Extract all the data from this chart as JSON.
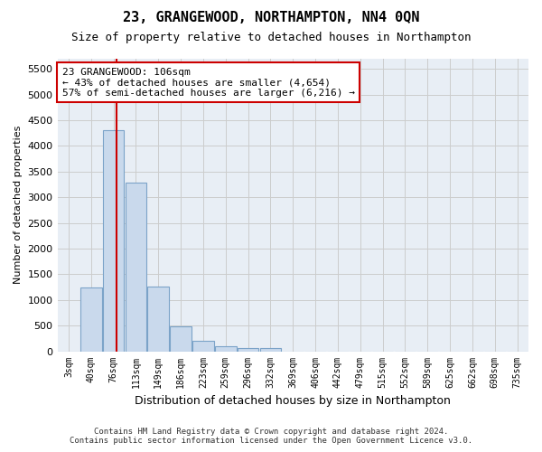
{
  "title": "23, GRANGEWOOD, NORTHAMPTON, NN4 0QN",
  "subtitle": "Size of property relative to detached houses in Northampton",
  "xlabel": "Distribution of detached houses by size in Northampton",
  "ylabel": "Number of detached properties",
  "bin_labels": [
    "3sqm",
    "40sqm",
    "76sqm",
    "113sqm",
    "149sqm",
    "186sqm",
    "223sqm",
    "259sqm",
    "296sqm",
    "332sqm",
    "369sqm",
    "406sqm",
    "442sqm",
    "479sqm",
    "515sqm",
    "552sqm",
    "589sqm",
    "625sqm",
    "662sqm",
    "698sqm",
    "735sqm"
  ],
  "bar_values": [
    0,
    1250,
    4300,
    3280,
    1260,
    480,
    200,
    95,
    65,
    65,
    0,
    0,
    0,
    0,
    0,
    0,
    0,
    0,
    0,
    0,
    0
  ],
  "bar_color": "#c9d9ec",
  "bar_edge_color": "#7ba3c8",
  "vline_x_index": 2.15,
  "vline_color": "#cc0000",
  "annotation_text": "23 GRANGEWOOD: 106sqm\n← 43% of detached houses are smaller (4,654)\n57% of semi-detached houses are larger (6,216) →",
  "annotation_box_color": "#ffffff",
  "annotation_box_edge_color": "#cc0000",
  "ylim": [
    0,
    5700
  ],
  "yticks": [
    0,
    500,
    1000,
    1500,
    2000,
    2500,
    3000,
    3500,
    4000,
    4500,
    5000,
    5500
  ],
  "footer_line1": "Contains HM Land Registry data © Crown copyright and database right 2024.",
  "footer_line2": "Contains public sector information licensed under the Open Government Licence v3.0.",
  "grid_color": "#cccccc",
  "background_color": "#e8eef5"
}
